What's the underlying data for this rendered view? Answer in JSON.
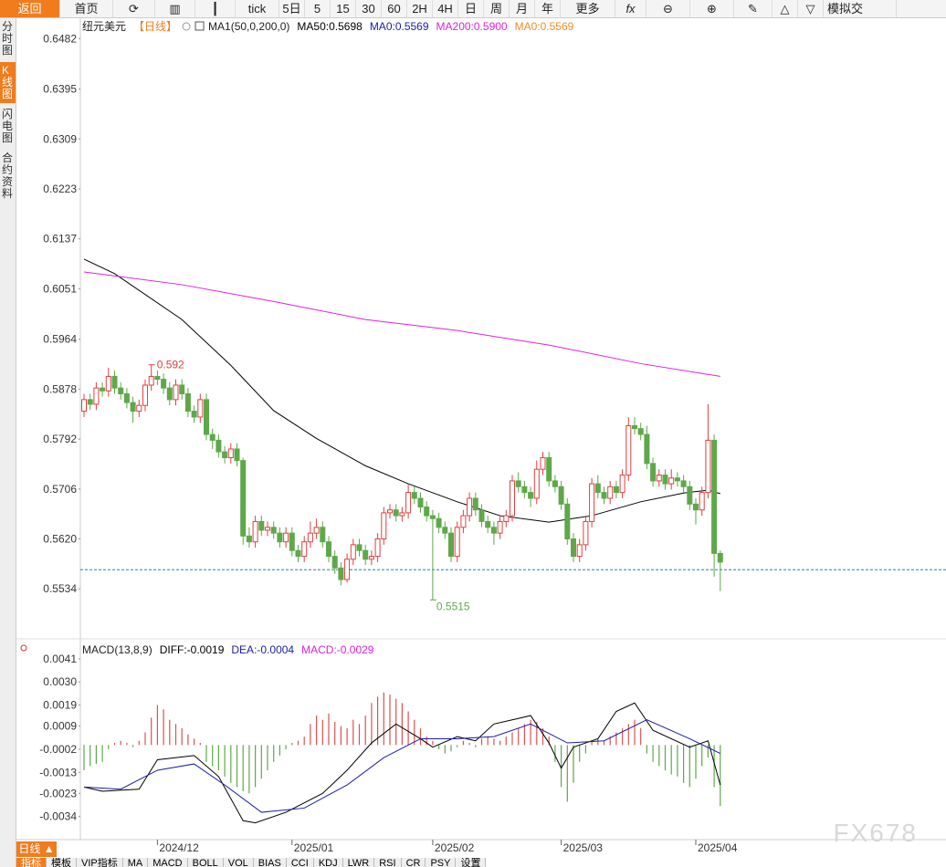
{
  "toolbar": {
    "back": "返回",
    "home": "首页",
    "items": [
      "tick",
      "5日",
      "5",
      "15",
      "30",
      "60",
      "2H",
      "4H",
      "日",
      "周",
      "月",
      "年"
    ],
    "more": "更多",
    "trade": "模拟交"
  },
  "sidebar": [
    "分时图",
    "K线图",
    "闪电图",
    "合约资料"
  ],
  "footer": {
    "period": "日线 ▲",
    "tabs": [
      "指标",
      "模板",
      "VIP指标",
      "MA",
      "MACD",
      "BOLL",
      "VOL",
      "BIAS",
      "CCI",
      "KDJ",
      "LWR",
      "RSI",
      "CR",
      "PSY",
      "设置"
    ]
  },
  "watermark": "FX678",
  "chart_data": [
    {
      "type": "candlestick",
      "title": "纽元美元",
      "subtitle": "【日线】",
      "indicator": "MA1(50,0,200,0)",
      "up_color": "#e0403f",
      "down_color": "#5ea84a",
      "ylim": [
        0.5451,
        0.6517
      ],
      "yticks": [
        0.6482,
        0.6395,
        0.6309,
        0.6223,
        0.6137,
        0.6051,
        0.5964,
        0.5878,
        0.5792,
        0.5706,
        {
          "value": 0.562,
          "label": "0.5620"
        },
        0.5534
      ],
      "xticks": [
        {
          "value": 12,
          "label": "2024/12"
        },
        {
          "value": 34,
          "label": "2025/01"
        },
        {
          "value": 57,
          "label": "2025/02"
        },
        {
          "value": 78,
          "label": "2025/03"
        },
        {
          "value": 100,
          "label": "2025/04"
        }
      ],
      "price_line": 0.5567,
      "open": [
        0.584,
        0.586,
        0.5852,
        0.588,
        0.5875,
        0.59,
        0.588,
        0.587,
        0.5855,
        0.584,
        0.585,
        0.5885,
        0.59,
        0.5895,
        0.588,
        0.586,
        0.5885,
        0.587,
        0.584,
        0.583,
        0.586,
        0.58,
        0.579,
        0.577,
        0.576,
        0.5775,
        0.5755,
        0.5625,
        0.5615,
        0.565,
        0.5635,
        0.564,
        0.563,
        0.5615,
        0.563,
        0.56,
        0.559,
        0.5615,
        0.563,
        0.564,
        0.5615,
        0.559,
        0.557,
        0.555,
        0.5585,
        0.561,
        0.56,
        0.5585,
        0.559,
        0.562,
        0.5665,
        0.567,
        0.566,
        0.5665,
        0.57,
        0.569,
        0.5675,
        0.566,
        0.5655,
        0.564,
        0.563,
        0.559,
        0.564,
        0.566,
        0.569,
        0.567,
        0.565,
        0.564,
        0.563,
        0.565,
        0.566,
        0.572,
        0.571,
        0.57,
        0.569,
        0.574,
        0.576,
        0.572,
        0.571,
        0.568,
        0.562,
        0.559,
        0.561,
        0.565,
        0.5715,
        0.57,
        0.569,
        0.571,
        0.57,
        0.573,
        0.5815,
        0.581,
        0.58,
        0.575,
        0.572,
        0.573,
        0.5715,
        0.5725,
        0.572,
        0.571,
        0.568,
        0.567,
        0.57,
        0.579,
        0.5595
      ],
      "high": [
        0.587,
        0.587,
        0.589,
        0.589,
        0.5915,
        0.591,
        0.589,
        0.588,
        0.5865,
        0.586,
        0.5895,
        0.592,
        0.591,
        0.5905,
        0.589,
        0.5895,
        0.5895,
        0.588,
        0.585,
        0.587,
        0.587,
        0.581,
        0.58,
        0.578,
        0.5785,
        0.5785,
        0.576,
        0.564,
        0.566,
        0.566,
        0.565,
        0.565,
        0.564,
        0.564,
        0.564,
        0.561,
        0.5625,
        0.565,
        0.5655,
        0.565,
        0.5625,
        0.56,
        0.558,
        0.5595,
        0.562,
        0.562,
        0.561,
        0.56,
        0.563,
        0.5675,
        0.568,
        0.568,
        0.5675,
        0.5715,
        0.571,
        0.57,
        0.5685,
        0.567,
        0.5665,
        0.565,
        0.564,
        0.565,
        0.567,
        0.57,
        0.57,
        0.568,
        0.566,
        0.565,
        0.566,
        0.567,
        0.573,
        0.5735,
        0.572,
        0.571,
        0.5755,
        0.577,
        0.577,
        0.573,
        0.572,
        0.569,
        0.563,
        0.562,
        0.566,
        0.5725,
        0.573,
        0.571,
        0.572,
        0.572,
        0.574,
        0.583,
        0.583,
        0.582,
        0.5815,
        0.576,
        0.574,
        0.574,
        0.574,
        0.5735,
        0.573,
        0.572,
        0.569,
        0.571,
        0.5852,
        0.58,
        0.56
      ],
      "low": [
        0.583,
        0.5842,
        0.5842,
        0.5865,
        0.5865,
        0.587,
        0.586,
        0.5845,
        0.582,
        0.583,
        0.584,
        0.5875,
        0.5885,
        0.587,
        0.585,
        0.585,
        0.586,
        0.583,
        0.582,
        0.582,
        0.579,
        0.5775,
        0.576,
        0.575,
        0.575,
        0.5745,
        0.561,
        0.5605,
        0.5605,
        0.5625,
        0.5625,
        0.562,
        0.5605,
        0.5605,
        0.559,
        0.558,
        0.558,
        0.5605,
        0.562,
        0.5605,
        0.558,
        0.556,
        0.554,
        0.5545,
        0.5575,
        0.559,
        0.5575,
        0.5575,
        0.558,
        0.561,
        0.5655,
        0.565,
        0.565,
        0.5655,
        0.568,
        0.5665,
        0.565,
        0.5515,
        0.563,
        0.562,
        0.558,
        0.558,
        0.563,
        0.565,
        0.566,
        0.564,
        0.563,
        0.561,
        0.562,
        0.564,
        0.565,
        0.57,
        0.569,
        0.5675,
        0.568,
        0.573,
        0.571,
        0.57,
        0.567,
        0.561,
        0.558,
        0.558,
        0.56,
        0.564,
        0.569,
        0.568,
        0.568,
        0.569,
        0.569,
        0.572,
        0.58,
        0.579,
        0.574,
        0.571,
        0.571,
        0.5705,
        0.5705,
        0.571,
        0.57,
        0.567,
        0.5645,
        0.566,
        0.569,
        0.5555,
        0.553
      ],
      "close": [
        0.586,
        0.5852,
        0.588,
        0.5875,
        0.59,
        0.588,
        0.587,
        0.5855,
        0.584,
        0.585,
        0.5885,
        0.59,
        0.5895,
        0.588,
        0.586,
        0.5885,
        0.587,
        0.584,
        0.583,
        0.586,
        0.58,
        0.579,
        0.577,
        0.576,
        0.5775,
        0.5755,
        0.5625,
        0.5615,
        0.565,
        0.5635,
        0.564,
        0.563,
        0.5615,
        0.563,
        0.56,
        0.559,
        0.5615,
        0.563,
        0.564,
        0.5615,
        0.559,
        0.557,
        0.555,
        0.5585,
        0.561,
        0.56,
        0.5585,
        0.559,
        0.562,
        0.5665,
        0.567,
        0.566,
        0.5665,
        0.57,
        0.569,
        0.5675,
        0.566,
        0.5655,
        0.564,
        0.563,
        0.559,
        0.564,
        0.566,
        0.569,
        0.567,
        0.565,
        0.564,
        0.563,
        0.565,
        0.566,
        0.572,
        0.571,
        0.57,
        0.569,
        0.574,
        0.576,
        0.572,
        0.571,
        0.568,
        0.562,
        0.559,
        0.561,
        0.565,
        0.5715,
        0.57,
        0.569,
        0.571,
        0.57,
        0.573,
        0.5815,
        0.581,
        0.58,
        0.575,
        0.572,
        0.573,
        0.5715,
        0.5725,
        0.572,
        0.571,
        0.568,
        0.567,
        0.57,
        0.579,
        0.5595,
        0.558
      ],
      "series": [
        {
          "name": "MA50:0.5698",
          "color": "#000000",
          "x": [
            0,
            5,
            16,
            24,
            31,
            38,
            46,
            53,
            61,
            68,
            76,
            83,
            91,
            98,
            102,
            104
          ],
          "values": [
            0.6102,
            0.6077,
            0.5998,
            0.5919,
            0.5841,
            0.5793,
            0.5746,
            0.5715,
            0.5684,
            0.566,
            0.5649,
            0.566,
            0.5684,
            0.5699,
            0.5704,
            0.5698
          ]
        },
        {
          "name": "MA0:0.5569",
          "color": "#1c1ca8"
        },
        {
          "name": "MA200:0.5900",
          "color": "#e020e0",
          "x": [
            0,
            16,
            31,
            46,
            61,
            76,
            91,
            104
          ],
          "values": [
            0.608,
            0.6058,
            0.6029,
            0.5998,
            0.5979,
            0.5954,
            0.5922,
            0.59
          ]
        },
        {
          "name": "MA0:0.5569",
          "color": "#f08c28"
        }
      ]
    },
    {
      "type": "macd",
      "title": "MACD(13,8,9)",
      "up_color": "#d9534f",
      "down_color": "#5ea84a",
      "ylim": [
        -0.0045,
        0.0044
      ],
      "yticks": [
        0.0041,
        {
          "value": 0.003,
          "label": "0.0030"
        },
        0.0019,
        0.0009,
        -0.0002,
        -0.0013,
        -0.0023,
        -0.0034
      ],
      "histogram": {
        "name": "MACD:-0.0029",
        "color": "#e020e0",
        "values": [
          -0.0012,
          -0.001,
          -0.0009,
          -0.0008,
          -0.0002,
          0.0001,
          0.0002,
          0.0001,
          -0.0001,
          0.0002,
          0.0006,
          0.0013,
          0.0019,
          0.0017,
          0.0012,
          0.001,
          0.0008,
          0.0005,
          0.0003,
          0.0001,
          -0.0008,
          -0.001,
          -0.0012,
          -0.0015,
          -0.0018,
          -0.002,
          -0.0022,
          -0.0023,
          -0.002,
          -0.0016,
          -0.0012,
          -0.0008,
          -0.0005,
          -0.0002,
          0.0001,
          0.0002,
          0.0004,
          0.001,
          0.0014,
          0.0012,
          0.0015,
          0.0011,
          0.0009,
          0.0008,
          0.0012,
          0.001,
          0.0014,
          0.002,
          0.0023,
          0.0025,
          0.0024,
          0.0022,
          0.002,
          0.0016,
          0.0012,
          0.0008,
          0.0004,
          0.0002,
          -0.0002,
          -0.0004,
          -0.0003,
          -0.0001,
          0.0002,
          0.0001,
          -0.0001,
          0.0003,
          0.0004,
          0.0003,
          0.0002,
          0.0004,
          0.0006,
          0.0008,
          0.001,
          0.0012,
          0.0011,
          0.0008,
          0.0004,
          -0.0008,
          -0.002,
          -0.0027,
          -0.0018,
          -0.0008,
          -0.0004,
          0.0002,
          0.0003,
          0.0002,
          0.0004,
          0.0006,
          0.0008,
          0.001,
          0.0012,
          0.0008,
          -0.0004,
          -0.0008,
          -0.001,
          -0.0012,
          -0.0014,
          -0.0015,
          -0.0018,
          -0.002,
          -0.0016,
          -0.001,
          -0.0006,
          -0.002,
          -0.0029
        ]
      },
      "series": [
        {
          "name": "DIFF:-0.0019",
          "color": "#000000",
          "x": [
            0,
            3,
            9,
            12,
            18,
            22,
            26,
            28,
            33,
            39,
            43,
            47,
            51,
            55,
            57,
            61,
            64,
            67,
            70,
            73,
            76,
            78,
            80,
            84,
            87,
            90,
            93,
            99,
            102,
            104
          ],
          "values": [
            -0.002,
            -0.0022,
            -0.0021,
            -0.0007,
            -0.0005,
            -0.0015,
            -0.0036,
            -0.0037,
            -0.0032,
            -0.0023,
            -0.0012,
            0.0001,
            0.001,
            0.0003,
            -0.0001,
            0.0004,
            0.0002,
            0.001,
            0.0012,
            0.0014,
            0.0001,
            -0.0011,
            -0.0001,
            0.0003,
            0.0016,
            0.002,
            0.0007,
            -0.0001,
            0.0002,
            -0.0019
          ]
        },
        {
          "name": "DEA:-0.0004",
          "color": "#1c1ca8",
          "x": [
            0,
            6,
            12,
            18,
            23,
            29,
            36,
            43,
            49,
            55,
            61,
            67,
            73,
            79,
            85,
            92,
            99,
            104
          ],
          "values": [
            -0.002,
            -0.0021,
            -0.0012,
            -0.0009,
            -0.0019,
            -0.0032,
            -0.003,
            -0.0019,
            -0.0006,
            0.0003,
            0.0003,
            0.0004,
            0.001,
            0.0001,
            0.0002,
            0.0012,
            0.0003,
            -0.0004
          ]
        }
      ]
    }
  ]
}
